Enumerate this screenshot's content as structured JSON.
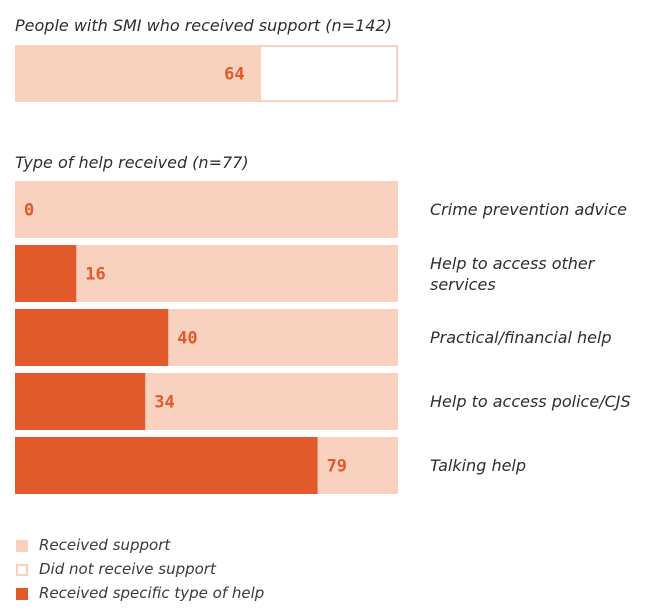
{
  "chart_data": [
    {
      "type": "bar",
      "title": "People with SMI who received support (n=142)",
      "categories": [
        ""
      ],
      "series": [
        {
          "name": "Received support",
          "values": [
            64
          ]
        },
        {
          "name": "Did not receive support",
          "values": [
            36
          ]
        }
      ],
      "labels": [
        "64"
      ],
      "xlim": [
        0,
        100
      ]
    },
    {
      "type": "bar",
      "title": "Type of help received (n=77)",
      "categories": [
        "Crime prevention advice",
        "Help to access other services",
        "Practical/financial help",
        "Help to access police/CJS",
        "Talking help"
      ],
      "series": [
        {
          "name": "Received specific type of help",
          "values": [
            0,
            16,
            40,
            34,
            79
          ]
        }
      ],
      "labels": [
        "0",
        "16",
        "40",
        "34",
        "79"
      ],
      "xlim": [
        0,
        100
      ]
    }
  ],
  "legend": [
    {
      "label": "Received support",
      "fill": "#f8d2bf",
      "stroke": "#f8d2bf"
    },
    {
      "label": "Did not receive support",
      "fill": "#ffffff",
      "stroke": "#f8d2bf"
    },
    {
      "label": "Received specific type of help",
      "fill": "#e05a2b",
      "stroke": "#e05a2b"
    }
  ],
  "colors": {
    "light": "#f8d2bf",
    "dark": "#e05a2b",
    "empty": "#ffffff"
  }
}
